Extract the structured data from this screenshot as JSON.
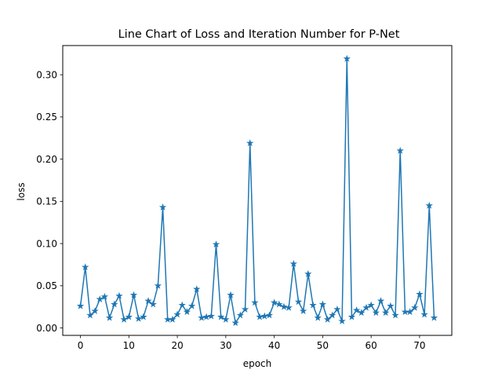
{
  "chart_data": {
    "type": "line",
    "title": "Line Chart of Loss and Iteration Number for P-Net",
    "xlabel": "epoch",
    "ylabel": "loss",
    "xlim": [
      -3.65,
      76.65
    ],
    "ylim": [
      -0.0088,
      0.3346
    ],
    "xticks": [
      0,
      10,
      20,
      30,
      40,
      50,
      60,
      70
    ],
    "xtick_labels": [
      "0",
      "10",
      "20",
      "30",
      "40",
      "50",
      "60",
      "70"
    ],
    "yticks": [
      0.0,
      0.05,
      0.1,
      0.15,
      0.2,
      0.25,
      0.3
    ],
    "ytick_labels": [
      "0.00",
      "0.05",
      "0.10",
      "0.15",
      "0.20",
      "0.25",
      "0.30"
    ],
    "grid": false,
    "marker": "star",
    "color": "#1f77b4",
    "series": [
      {
        "x": [
          0,
          1,
          2,
          3,
          4,
          5,
          6,
          7,
          8,
          9,
          10,
          11,
          12,
          13,
          14,
          15,
          16,
          17,
          18,
          19,
          20,
          21,
          22,
          23,
          24,
          25,
          26,
          27,
          28,
          29,
          30,
          31,
          32,
          33,
          34,
          35,
          36,
          37,
          38,
          39,
          40,
          41,
          42,
          43,
          44,
          45,
          46,
          47,
          48,
          49,
          50,
          51,
          52,
          53,
          54,
          55,
          56,
          57,
          58,
          59,
          60,
          61,
          62,
          63,
          64,
          65,
          66,
          67,
          68,
          69,
          70,
          71,
          72,
          73
        ],
        "values": [
          0.026,
          0.072,
          0.015,
          0.02,
          0.034,
          0.037,
          0.012,
          0.028,
          0.038,
          0.01,
          0.013,
          0.039,
          0.011,
          0.013,
          0.032,
          0.028,
          0.05,
          0.143,
          0.01,
          0.01,
          0.016,
          0.027,
          0.019,
          0.026,
          0.046,
          0.012,
          0.013,
          0.014,
          0.099,
          0.013,
          0.01,
          0.039,
          0.006,
          0.015,
          0.022,
          0.219,
          0.03,
          0.013,
          0.014,
          0.015,
          0.03,
          0.028,
          0.025,
          0.024,
          0.076,
          0.031,
          0.02,
          0.064,
          0.027,
          0.012,
          0.028,
          0.01,
          0.015,
          0.022,
          0.008,
          0.319,
          0.013,
          0.021,
          0.018,
          0.024,
          0.027,
          0.018,
          0.032,
          0.018,
          0.026,
          0.015,
          0.21,
          0.019,
          0.019,
          0.024,
          0.04,
          0.016,
          0.145,
          0.012
        ]
      }
    ]
  }
}
